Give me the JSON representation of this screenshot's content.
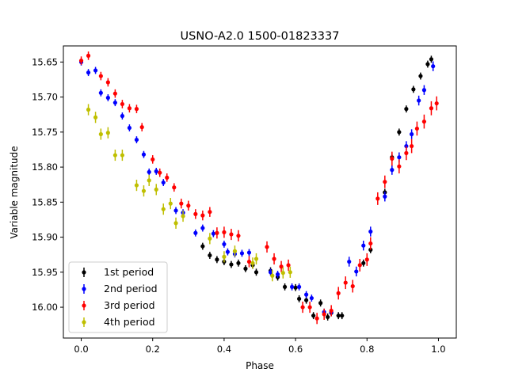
{
  "chart_data": {
    "type": "scatter",
    "title": "USNO-A2.0 1500-01823337",
    "xlabel": "Phase",
    "ylabel": "Variable magnitude",
    "xlim": [
      -0.05,
      1.05
    ],
    "ylim": [
      16.044,
      15.627
    ],
    "y_inverted": true,
    "x_ticks": [
      0.0,
      0.2,
      0.4,
      0.6,
      0.8,
      1.0
    ],
    "x_tick_labels": [
      "0.0",
      "0.2",
      "0.4",
      "0.6",
      "0.8",
      "1.0"
    ],
    "y_ticks": [
      15.65,
      15.7,
      15.75,
      15.8,
      15.85,
      15.9,
      15.95,
      16.0
    ],
    "y_tick_labels": [
      "15.65",
      "15.70",
      "15.75",
      "15.80",
      "15.85",
      "15.90",
      "15.95",
      "16.00"
    ],
    "grid": false,
    "legend_position": "lower-left",
    "series": [
      {
        "name": "1st period",
        "color": "#000000",
        "points": [
          [
            0.34,
            15.913,
            0.005
          ],
          [
            0.36,
            15.926,
            0.005
          ],
          [
            0.38,
            15.932,
            0.005
          ],
          [
            0.4,
            15.935,
            0.005
          ],
          [
            0.42,
            15.939,
            0.005
          ],
          [
            0.44,
            15.937,
            0.005
          ],
          [
            0.46,
            15.945,
            0.005
          ],
          [
            0.48,
            15.94,
            0.005
          ],
          [
            0.49,
            15.95,
            0.005
          ],
          [
            0.53,
            15.948,
            0.005
          ],
          [
            0.55,
            15.957,
            0.005
          ],
          [
            0.57,
            15.971,
            0.005
          ],
          [
            0.6,
            15.972,
            0.005
          ],
          [
            0.61,
            15.988,
            0.005
          ],
          [
            0.63,
            15.99,
            0.005
          ],
          [
            0.65,
            16.012,
            0.005
          ],
          [
            0.67,
            15.994,
            0.005
          ],
          [
            0.69,
            16.014,
            0.005
          ],
          [
            0.7,
            16.008,
            0.005
          ],
          [
            0.72,
            16.012,
            0.005
          ],
          [
            0.73,
            16.012,
            0.005
          ],
          [
            0.79,
            15.937,
            0.005
          ],
          [
            0.81,
            15.918,
            0.005
          ],
          [
            0.85,
            15.836,
            0.005
          ],
          [
            0.87,
            15.786,
            0.005
          ],
          [
            0.89,
            15.75,
            0.005
          ],
          [
            0.91,
            15.717,
            0.005
          ],
          [
            0.93,
            15.689,
            0.005
          ],
          [
            0.95,
            15.67,
            0.005
          ],
          [
            0.97,
            15.653,
            0.005
          ],
          [
            0.98,
            15.646,
            0.005
          ]
        ]
      },
      {
        "name": "2nd period",
        "color": "#0000ff",
        "points": [
          [
            0.0,
            15.65,
            0.005
          ],
          [
            0.02,
            15.665,
            0.005
          ],
          [
            0.04,
            15.662,
            0.005
          ],
          [
            0.055,
            15.694,
            0.005
          ],
          [
            0.075,
            15.701,
            0.005
          ],
          [
            0.095,
            15.708,
            0.005
          ],
          [
            0.115,
            15.727,
            0.005
          ],
          [
            0.135,
            15.744,
            0.005
          ],
          [
            0.155,
            15.761,
            0.005
          ],
          [
            0.175,
            15.782,
            0.005
          ],
          [
            0.19,
            15.807,
            0.005
          ],
          [
            0.21,
            15.806,
            0.005
          ],
          [
            0.23,
            15.822,
            0.005
          ],
          [
            0.265,
            15.862,
            0.005
          ],
          [
            0.285,
            15.865,
            0.005
          ],
          [
            0.32,
            15.894,
            0.005
          ],
          [
            0.34,
            15.887,
            0.005
          ],
          [
            0.37,
            15.895,
            0.005
          ],
          [
            0.4,
            15.91,
            0.005
          ],
          [
            0.41,
            15.921,
            0.005
          ],
          [
            0.43,
            15.924,
            0.005
          ],
          [
            0.45,
            15.923,
            0.005
          ],
          [
            0.47,
            15.922,
            0.005
          ],
          [
            0.53,
            15.95,
            0.005
          ],
          [
            0.55,
            15.953,
            0.005
          ],
          [
            0.59,
            15.971,
            0.005
          ],
          [
            0.61,
            15.971,
            0.005
          ],
          [
            0.63,
            15.982,
            0.005
          ],
          [
            0.645,
            15.987,
            0.005
          ],
          [
            0.68,
            16.007,
            0.005
          ],
          [
            0.7,
            16.007,
            0.005
          ],
          [
            0.75,
            15.935,
            0.007
          ],
          [
            0.77,
            15.949,
            0.007
          ],
          [
            0.79,
            15.912,
            0.007
          ],
          [
            0.81,
            15.892,
            0.007
          ],
          [
            0.85,
            15.842,
            0.007
          ],
          [
            0.87,
            15.804,
            0.007
          ],
          [
            0.89,
            15.786,
            0.007
          ],
          [
            0.91,
            15.77,
            0.007
          ],
          [
            0.925,
            15.753,
            0.007
          ],
          [
            0.945,
            15.705,
            0.007
          ],
          [
            0.96,
            15.69,
            0.007
          ],
          [
            0.985,
            15.656,
            0.007
          ]
        ]
      },
      {
        "name": "3rd period",
        "color": "#ff0000",
        "points": [
          [
            0.0,
            15.648,
            0.006
          ],
          [
            0.02,
            15.641,
            0.006
          ],
          [
            0.055,
            15.67,
            0.006
          ],
          [
            0.075,
            15.679,
            0.006
          ],
          [
            0.095,
            15.695,
            0.006
          ],
          [
            0.115,
            15.71,
            0.006
          ],
          [
            0.135,
            15.716,
            0.006
          ],
          [
            0.155,
            15.717,
            0.006
          ],
          [
            0.17,
            15.743,
            0.006
          ],
          [
            0.2,
            15.789,
            0.006
          ],
          [
            0.22,
            15.808,
            0.006
          ],
          [
            0.24,
            15.815,
            0.006
          ],
          [
            0.26,
            15.829,
            0.006
          ],
          [
            0.28,
            15.852,
            0.007
          ],
          [
            0.3,
            15.855,
            0.007
          ],
          [
            0.32,
            15.867,
            0.007
          ],
          [
            0.34,
            15.869,
            0.007
          ],
          [
            0.36,
            15.864,
            0.007
          ],
          [
            0.38,
            15.894,
            0.008
          ],
          [
            0.4,
            15.893,
            0.008
          ],
          [
            0.42,
            15.896,
            0.008
          ],
          [
            0.44,
            15.898,
            0.008
          ],
          [
            0.47,
            15.935,
            0.008
          ],
          [
            0.52,
            15.914,
            0.008
          ],
          [
            0.54,
            15.931,
            0.008
          ],
          [
            0.56,
            15.942,
            0.008
          ],
          [
            0.58,
            15.94,
            0.008
          ],
          [
            0.62,
            16.0,
            0.008
          ],
          [
            0.64,
            16.0,
            0.008
          ],
          [
            0.66,
            16.016,
            0.008
          ],
          [
            0.68,
            16.01,
            0.008
          ],
          [
            0.7,
            16.005,
            0.008
          ],
          [
            0.72,
            15.98,
            0.009
          ],
          [
            0.74,
            15.965,
            0.009
          ],
          [
            0.76,
            15.97,
            0.009
          ],
          [
            0.78,
            15.94,
            0.009
          ],
          [
            0.8,
            15.932,
            0.009
          ],
          [
            0.81,
            15.909,
            0.009
          ],
          [
            0.83,
            15.845,
            0.009
          ],
          [
            0.85,
            15.821,
            0.009
          ],
          [
            0.87,
            15.788,
            0.01
          ],
          [
            0.89,
            15.799,
            0.01
          ],
          [
            0.91,
            15.78,
            0.01
          ],
          [
            0.925,
            15.77,
            0.01
          ],
          [
            0.94,
            15.745,
            0.01
          ],
          [
            0.96,
            15.735,
            0.01
          ],
          [
            0.98,
            15.716,
            0.01
          ],
          [
            0.995,
            15.709,
            0.01
          ]
        ]
      },
      {
        "name": "4th period",
        "color": "#bfbf00",
        "points": [
          [
            0.02,
            15.718,
            0.008
          ],
          [
            0.04,
            15.729,
            0.008
          ],
          [
            0.055,
            15.753,
            0.008
          ],
          [
            0.075,
            15.751,
            0.008
          ],
          [
            0.095,
            15.783,
            0.008
          ],
          [
            0.115,
            15.783,
            0.008
          ],
          [
            0.155,
            15.826,
            0.008
          ],
          [
            0.175,
            15.834,
            0.008
          ],
          [
            0.19,
            15.819,
            0.008
          ],
          [
            0.21,
            15.832,
            0.008
          ],
          [
            0.23,
            15.86,
            0.008
          ],
          [
            0.25,
            15.852,
            0.008
          ],
          [
            0.265,
            15.88,
            0.008
          ],
          [
            0.285,
            15.87,
            0.008
          ],
          [
            0.36,
            15.902,
            0.008
          ],
          [
            0.4,
            15.928,
            0.008
          ],
          [
            0.43,
            15.92,
            0.008
          ],
          [
            0.48,
            15.937,
            0.008
          ],
          [
            0.49,
            15.931,
            0.008
          ],
          [
            0.535,
            15.955,
            0.008
          ],
          [
            0.565,
            15.951,
            0.008
          ],
          [
            0.585,
            15.95,
            0.008
          ]
        ]
      }
    ]
  }
}
